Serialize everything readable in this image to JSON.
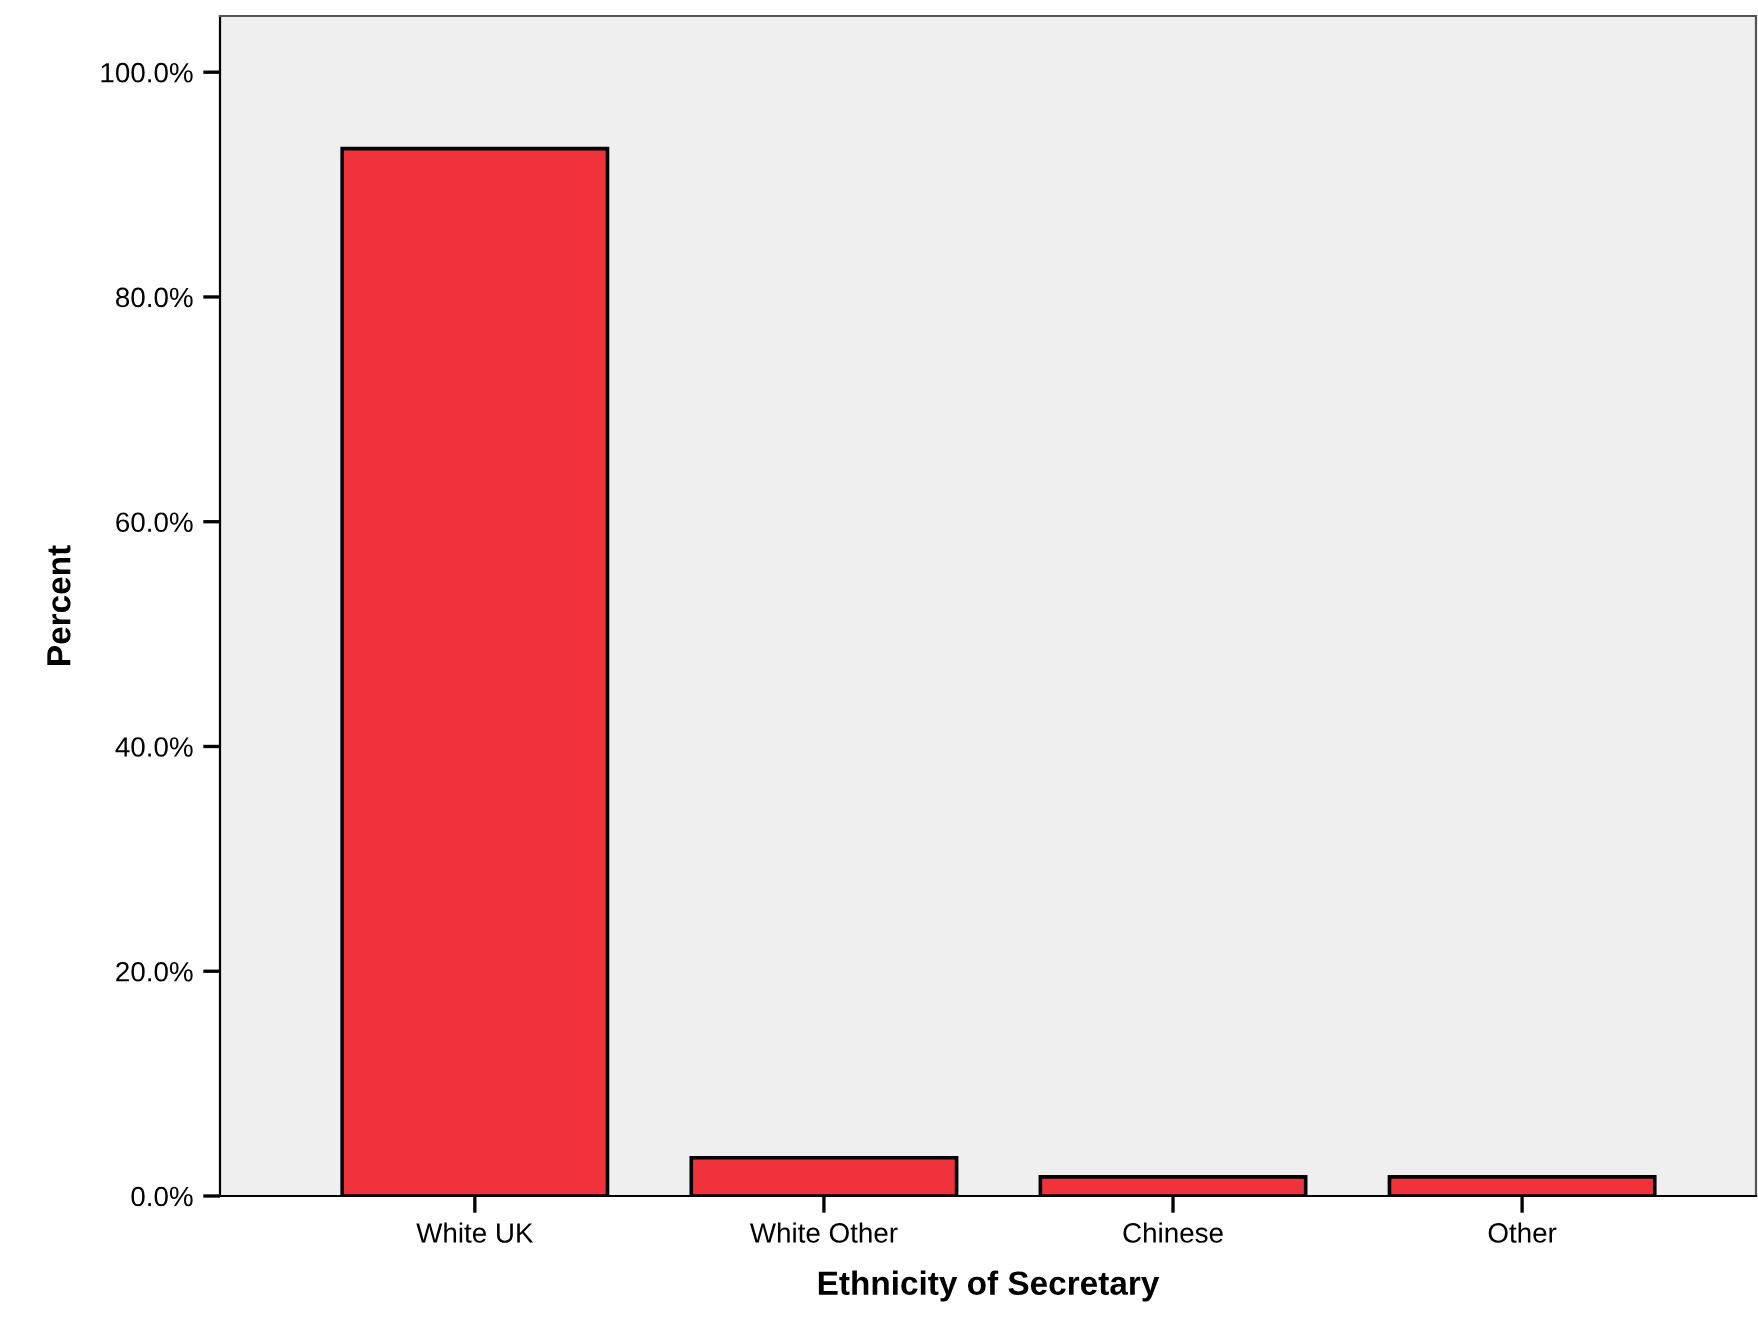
{
  "chart_data": {
    "type": "bar",
    "xlabel": "Ethnicity of Secretary",
    "ylabel": "Percent",
    "categories": [
      "White UK",
      "White Other",
      "Chinese",
      "Other"
    ],
    "values": [
      93.2,
      3.4,
      1.7,
      1.7
    ],
    "color": "#f0323a",
    "ylim": [
      0,
      105
    ],
    "yticks": [
      {
        "value": 0,
        "label": "0.0%"
      },
      {
        "value": 20,
        "label": "20.0%"
      },
      {
        "value": 40,
        "label": "40.0%"
      },
      {
        "value": 60,
        "label": "60.0%"
      },
      {
        "value": 80,
        "label": "80.0%"
      },
      {
        "value": 100,
        "label": "100.0%"
      }
    ],
    "grid": false
  }
}
